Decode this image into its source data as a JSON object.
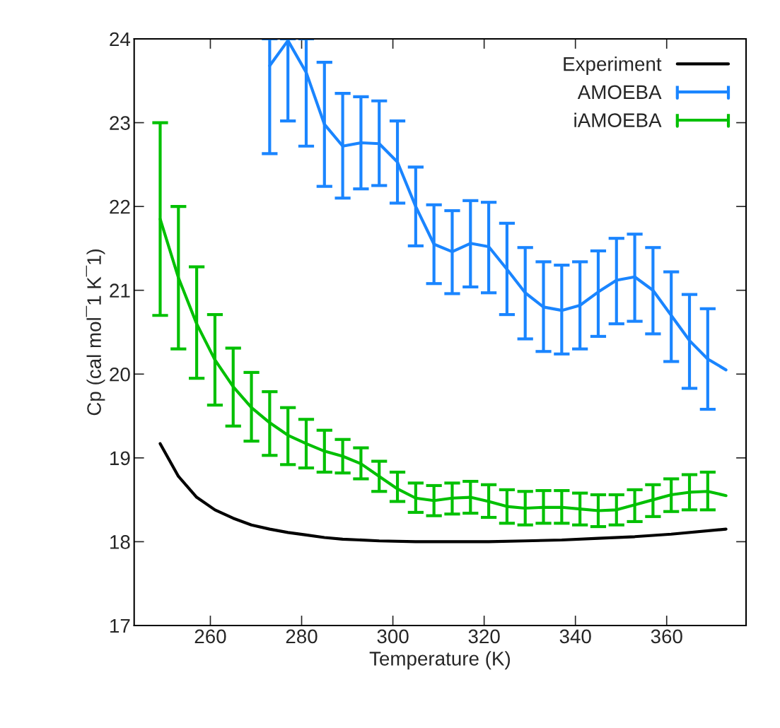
{
  "chart_data": {
    "type": "line",
    "xlabel": "Temperature (K)",
    "ylabel": "Cp (cal mol¯1 K¯1)",
    "xlim": [
      243.3,
      377.4
    ],
    "ylim": [
      17,
      24
    ],
    "xticks": [
      260,
      280,
      300,
      320,
      340,
      360
    ],
    "yticks": [
      17,
      18,
      19,
      20,
      21,
      22,
      23,
      24
    ],
    "grid": false,
    "legend": "top right",
    "marker": "none",
    "line_style": "solid",
    "series": [
      {
        "name": "Experiment",
        "color": "#000000",
        "x": [
          249,
          253,
          257,
          261,
          265,
          269,
          273,
          277,
          281,
          285,
          289,
          297,
          305,
          313,
          321,
          329,
          337,
          345,
          353,
          361,
          373
        ],
        "values": [
          19.17,
          18.78,
          18.53,
          18.38,
          18.28,
          18.2,
          18.15,
          18.11,
          18.08,
          18.05,
          18.03,
          18.01,
          18.0,
          18.0,
          18.0,
          18.01,
          18.02,
          18.04,
          18.06,
          18.09,
          18.15
        ]
      },
      {
        "name": "AMOEBA",
        "color": "#1a85ff",
        "x": [
          273,
          277,
          281,
          285,
          289,
          293,
          297,
          301,
          305,
          309,
          313,
          317,
          321,
          325,
          329,
          333,
          337,
          341,
          345,
          349,
          353,
          357,
          361,
          365,
          369,
          373
        ],
        "values": [
          23.68,
          23.98,
          23.6,
          22.98,
          22.72,
          22.76,
          22.75,
          22.53,
          22.0,
          21.55,
          21.46,
          21.56,
          21.52,
          21.25,
          20.97,
          20.8,
          20.76,
          20.82,
          20.98,
          21.12,
          21.16,
          21.0,
          20.7,
          20.4,
          20.18,
          20.05
        ],
        "errors": [
          [
            22.63,
            24.0
          ],
          [
            23.02,
            24.0
          ],
          [
            22.72,
            24.0
          ],
          [
            22.24,
            23.72
          ],
          [
            22.1,
            23.35
          ],
          [
            22.21,
            23.31
          ],
          [
            22.25,
            23.26
          ],
          [
            22.04,
            23.02
          ],
          [
            21.53,
            22.47
          ],
          [
            21.08,
            22.02
          ],
          [
            20.96,
            21.95
          ],
          [
            21.04,
            22.07
          ],
          [
            20.97,
            22.05
          ],
          [
            20.71,
            21.8
          ],
          [
            20.42,
            21.51
          ],
          [
            20.27,
            21.34
          ],
          [
            20.24,
            21.3
          ],
          [
            20.3,
            21.34
          ],
          [
            20.45,
            21.47
          ],
          [
            20.6,
            21.62
          ],
          [
            20.63,
            21.67
          ],
          [
            20.48,
            21.51
          ],
          [
            20.15,
            21.22
          ],
          [
            19.83,
            20.95
          ],
          [
            19.58,
            20.78
          ],
          null
        ]
      },
      {
        "name": "iAMOEBA",
        "color": "#00c000",
        "x": [
          249,
          253,
          257,
          261,
          265,
          269,
          273,
          277,
          281,
          285,
          289,
          293,
          297,
          301,
          305,
          309,
          313,
          317,
          321,
          325,
          329,
          333,
          337,
          341,
          345,
          349,
          353,
          357,
          361,
          365,
          369,
          373
        ],
        "values": [
          21.85,
          21.15,
          20.6,
          20.17,
          19.85,
          19.6,
          19.42,
          19.27,
          19.17,
          19.08,
          19.02,
          18.93,
          18.78,
          18.63,
          18.52,
          18.49,
          18.52,
          18.53,
          18.48,
          18.42,
          18.4,
          18.41,
          18.41,
          18.39,
          18.37,
          18.38,
          18.44,
          18.5,
          18.56,
          18.59,
          18.6,
          18.55
        ],
        "errors": [
          [
            20.7,
            23.0
          ],
          [
            20.3,
            22.0
          ],
          [
            19.95,
            21.28
          ],
          [
            19.63,
            20.71
          ],
          [
            19.38,
            20.31
          ],
          [
            19.2,
            20.02
          ],
          [
            19.03,
            19.79
          ],
          [
            18.92,
            19.6
          ],
          [
            18.88,
            19.46
          ],
          [
            18.83,
            19.33
          ],
          [
            18.82,
            19.22
          ],
          [
            18.75,
            19.12
          ],
          [
            18.6,
            18.96
          ],
          [
            18.48,
            18.83
          ],
          [
            18.35,
            18.7
          ],
          [
            18.31,
            18.67
          ],
          [
            18.33,
            18.7
          ],
          [
            18.34,
            18.72
          ],
          [
            18.29,
            18.68
          ],
          [
            18.22,
            18.62
          ],
          [
            18.2,
            18.6
          ],
          [
            18.22,
            18.61
          ],
          [
            18.22,
            18.61
          ],
          [
            18.2,
            18.58
          ],
          [
            18.18,
            18.56
          ],
          [
            18.2,
            18.56
          ],
          [
            18.24,
            18.62
          ],
          [
            18.3,
            18.68
          ],
          [
            18.36,
            18.75
          ],
          [
            18.38,
            18.8
          ],
          [
            18.38,
            18.83
          ],
          null
        ]
      }
    ]
  }
}
